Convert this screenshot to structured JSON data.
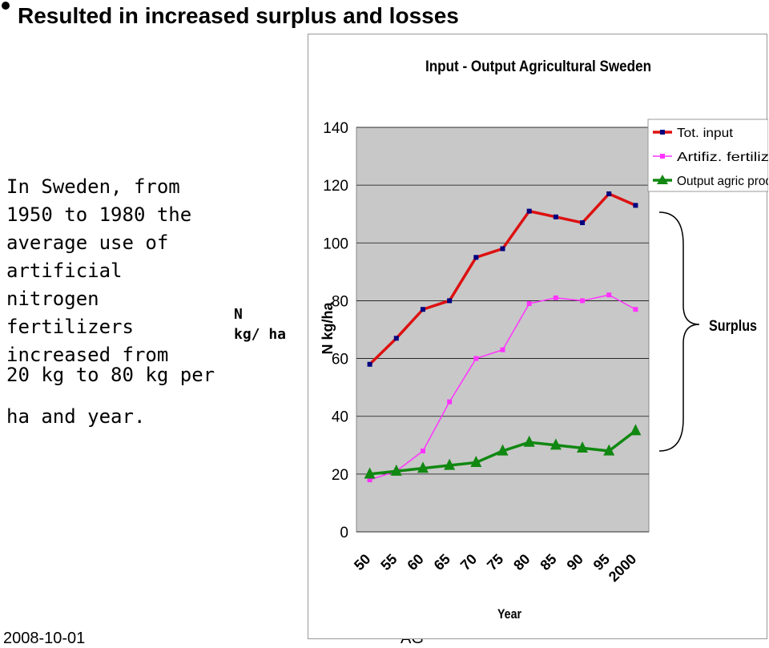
{
  "slide": {
    "title": "Resulted in increased surplus and losses",
    "body_paragraph": "In Sweden, from\n1950 to 1980 the\naverage use of\nartificial nitrogen\nfertilizers\nincreased from",
    "body_paragraph2": "20 kg to 80 kg per\nha and year.",
    "unit_label": "N\nkg/ ha",
    "date": "2008-10-01",
    "footer_text": "AG"
  },
  "colors": {
    "tot_input": "#dd1111",
    "artifiz": "#ff33ff",
    "output": "#118811",
    "plot_bg": "#c8c8c8",
    "marker_dark": "#000080"
  },
  "chart_data": {
    "type": "line",
    "title": "Input - Output Agricultural Sweden",
    "xlabel": "Year",
    "ylabel": "N kg/ha",
    "ylim": [
      0,
      140
    ],
    "yticks": [
      0,
      20,
      40,
      60,
      80,
      100,
      120,
      140
    ],
    "grid": true,
    "legend_position": "top-right",
    "categories": [
      "50",
      "55",
      "60",
      "65",
      "70",
      "75",
      "80",
      "85",
      "90",
      "95",
      "2000"
    ],
    "series": [
      {
        "name": "Tot. input",
        "values": [
          58,
          67,
          77,
          80,
          95,
          98,
          111,
          109,
          107,
          117,
          113
        ]
      },
      {
        "name": "Artifiz. fertilizer",
        "values": [
          18,
          21,
          28,
          45,
          60,
          63,
          79,
          81,
          80,
          82,
          77
        ]
      },
      {
        "name": "Output agric prod",
        "values": [
          20,
          21,
          22,
          23,
          24,
          28,
          31,
          30,
          29,
          28,
          35
        ]
      }
    ],
    "annotation": "Surplus"
  }
}
